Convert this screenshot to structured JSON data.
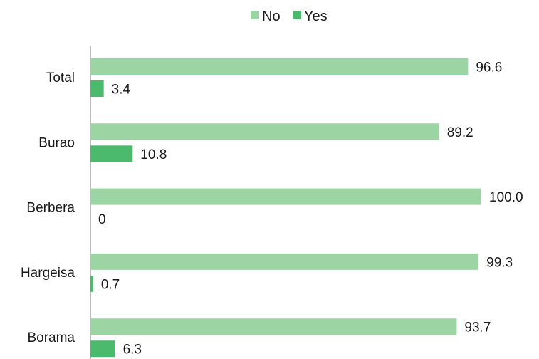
{
  "chart_data": {
    "type": "bar",
    "orientation": "horizontal",
    "categories": [
      "Total",
      "Burao",
      "Berbera",
      "Hargeisa",
      "Borama"
    ],
    "series": [
      {
        "name": "No",
        "values": [
          96.6,
          89.2,
          100.0,
          99.3,
          93.7
        ],
        "labels": [
          "96.6",
          "89.2",
          "100.0",
          "99.3",
          "93.7"
        ],
        "color": "#9dd4a4"
      },
      {
        "name": "Yes",
        "values": [
          3.4,
          10.8,
          0,
          0.7,
          6.3
        ],
        "labels": [
          "3.4",
          "10.8",
          "0",
          "0.7",
          "6.3"
        ],
        "color": "#4cba6c"
      }
    ],
    "xlim": [
      0,
      100
    ],
    "grid": false,
    "legend_position": "top-center",
    "title": "",
    "xlabel": "",
    "ylabel": ""
  }
}
